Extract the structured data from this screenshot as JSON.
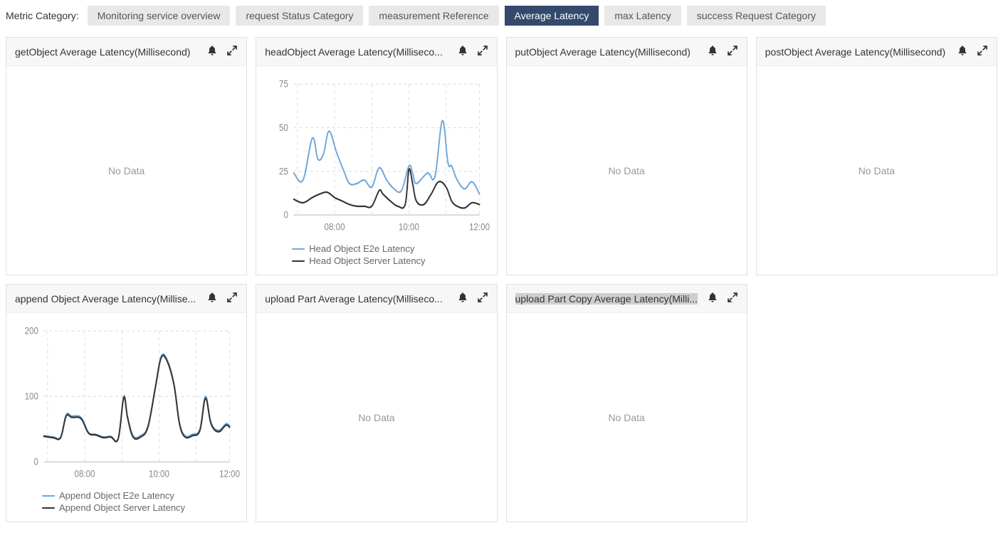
{
  "tabs": {
    "label": "Metric Category:",
    "items": [
      {
        "label": "Monitoring service overview",
        "active": false
      },
      {
        "label": "request Status Category",
        "active": false
      },
      {
        "label": "measurement Reference",
        "active": false
      },
      {
        "label": "Average Latency",
        "active": true
      },
      {
        "label": "max Latency",
        "active": false
      },
      {
        "label": "success Request Category",
        "active": false
      }
    ],
    "active_bg": "#334a6c",
    "active_fg": "#ffffff",
    "inactive_bg": "#e8e8e8",
    "inactive_fg": "#555555"
  },
  "nodata_text": "No Data",
  "panel_styles": {
    "border_color": "#e0e0e0",
    "header_bg": "#f7f7f7",
    "grid_color": "#dddddd",
    "axis_text_color": "#888888"
  },
  "panels": [
    {
      "title": "getObject Average Latency(Millisecond)",
      "type": "nodata"
    },
    {
      "title": "headObject Average Latency(Milliseco...",
      "type": "line",
      "ylim": [
        0,
        75
      ],
      "yticks": [
        0,
        25,
        50,
        75
      ],
      "xlabels": [
        "08:00",
        "10:00",
        "12:00"
      ],
      "xpositions": [
        0.22,
        0.62,
        1.0
      ],
      "grid_vlines": [
        0.02,
        0.22,
        0.42,
        0.62,
        0.82,
        1.0
      ],
      "legend": [
        {
          "label": "Head Object E2e Latency",
          "color": "#6fa8dc"
        },
        {
          "label": "Head Object Server Latency",
          "color": "#333333"
        }
      ],
      "series": [
        {
          "color": "#6fa8dc",
          "width": 2,
          "points": [
            [
              0.0,
              24
            ],
            [
              0.05,
              20
            ],
            [
              0.1,
              44
            ],
            [
              0.13,
              32
            ],
            [
              0.16,
              35
            ],
            [
              0.19,
              48
            ],
            [
              0.23,
              36
            ],
            [
              0.27,
              25
            ],
            [
              0.3,
              18
            ],
            [
              0.34,
              18
            ],
            [
              0.38,
              20
            ],
            [
              0.42,
              16
            ],
            [
              0.46,
              27
            ],
            [
              0.5,
              20
            ],
            [
              0.54,
              15
            ],
            [
              0.58,
              14
            ],
            [
              0.62,
              28
            ],
            [
              0.64,
              24
            ],
            [
              0.66,
              18
            ],
            [
              0.72,
              24
            ],
            [
              0.76,
              22
            ],
            [
              0.8,
              54
            ],
            [
              0.83,
              30
            ],
            [
              0.85,
              28
            ],
            [
              0.88,
              20
            ],
            [
              0.92,
              15
            ],
            [
              0.96,
              19
            ],
            [
              1.0,
              12
            ]
          ]
        },
        {
          "color": "#333333",
          "width": 2,
          "points": [
            [
              0.0,
              9
            ],
            [
              0.05,
              7
            ],
            [
              0.1,
              10
            ],
            [
              0.14,
              12
            ],
            [
              0.18,
              13
            ],
            [
              0.22,
              10
            ],
            [
              0.26,
              8
            ],
            [
              0.3,
              6
            ],
            [
              0.34,
              5
            ],
            [
              0.38,
              5
            ],
            [
              0.42,
              5
            ],
            [
              0.46,
              14
            ],
            [
              0.48,
              12
            ],
            [
              0.52,
              8
            ],
            [
              0.56,
              5
            ],
            [
              0.6,
              6
            ],
            [
              0.62,
              26
            ],
            [
              0.64,
              18
            ],
            [
              0.66,
              8
            ],
            [
              0.7,
              6
            ],
            [
              0.74,
              12
            ],
            [
              0.78,
              19
            ],
            [
              0.82,
              16
            ],
            [
              0.85,
              8
            ],
            [
              0.88,
              5
            ],
            [
              0.92,
              4
            ],
            [
              0.96,
              7
            ],
            [
              1.0,
              6
            ]
          ]
        }
      ]
    },
    {
      "title": "putObject Average Latency(Millisecond)",
      "type": "nodata"
    },
    {
      "title": "postObject Average Latency(Millisecond)",
      "type": "nodata"
    },
    {
      "title": "append Object Average Latency(Millise...",
      "type": "line",
      "ylim": [
        0,
        200
      ],
      "yticks": [
        0,
        100,
        200
      ],
      "xlabels": [
        "08:00",
        "10:00",
        "12:00"
      ],
      "xpositions": [
        0.22,
        0.62,
        1.0
      ],
      "grid_vlines": [
        0.02,
        0.22,
        0.42,
        0.62,
        0.82,
        1.0
      ],
      "legend": [
        {
          "label": "Append Object E2e Latency",
          "color": "#6fa8dc"
        },
        {
          "label": "Append Object Server Latency",
          "color": "#333333"
        }
      ],
      "series": [
        {
          "color": "#6fa8dc",
          "width": 2.5,
          "points": [
            [
              0.0,
              40
            ],
            [
              0.05,
              38
            ],
            [
              0.09,
              38
            ],
            [
              0.12,
              72
            ],
            [
              0.15,
              70
            ],
            [
              0.2,
              68
            ],
            [
              0.24,
              45
            ],
            [
              0.28,
              42
            ],
            [
              0.32,
              38
            ],
            [
              0.36,
              39
            ],
            [
              0.4,
              36
            ],
            [
              0.43,
              100
            ],
            [
              0.45,
              70
            ],
            [
              0.48,
              40
            ],
            [
              0.52,
              40
            ],
            [
              0.56,
              55
            ],
            [
              0.6,
              115
            ],
            [
              0.63,
              160
            ],
            [
              0.66,
              158
            ],
            [
              0.7,
              120
            ],
            [
              0.73,
              60
            ],
            [
              0.76,
              40
            ],
            [
              0.8,
              42
            ],
            [
              0.84,
              50
            ],
            [
              0.87,
              100
            ],
            [
              0.9,
              60
            ],
            [
              0.94,
              48
            ],
            [
              0.98,
              58
            ],
            [
              1.0,
              55
            ]
          ]
        },
        {
          "color": "#333333",
          "width": 2.5,
          "points": [
            [
              0.0,
              39
            ],
            [
              0.05,
              37
            ],
            [
              0.09,
              37
            ],
            [
              0.12,
              70
            ],
            [
              0.15,
              68
            ],
            [
              0.2,
              66
            ],
            [
              0.24,
              44
            ],
            [
              0.28,
              41
            ],
            [
              0.32,
              37
            ],
            [
              0.36,
              38
            ],
            [
              0.4,
              35
            ],
            [
              0.43,
              98
            ],
            [
              0.45,
              68
            ],
            [
              0.48,
              38
            ],
            [
              0.52,
              38
            ],
            [
              0.56,
              53
            ],
            [
              0.6,
              113
            ],
            [
              0.63,
              158
            ],
            [
              0.66,
              156
            ],
            [
              0.7,
              118
            ],
            [
              0.73,
              58
            ],
            [
              0.76,
              38
            ],
            [
              0.8,
              40
            ],
            [
              0.84,
              48
            ],
            [
              0.87,
              97
            ],
            [
              0.9,
              58
            ],
            [
              0.94,
              46
            ],
            [
              0.98,
              56
            ],
            [
              1.0,
              53
            ]
          ]
        }
      ]
    },
    {
      "title": "upload Part Average Latency(Milliseco...",
      "type": "nodata"
    },
    {
      "title": "upload Part Copy Average Latency(Milli...",
      "type": "nodata",
      "title_highlighted": true
    }
  ]
}
